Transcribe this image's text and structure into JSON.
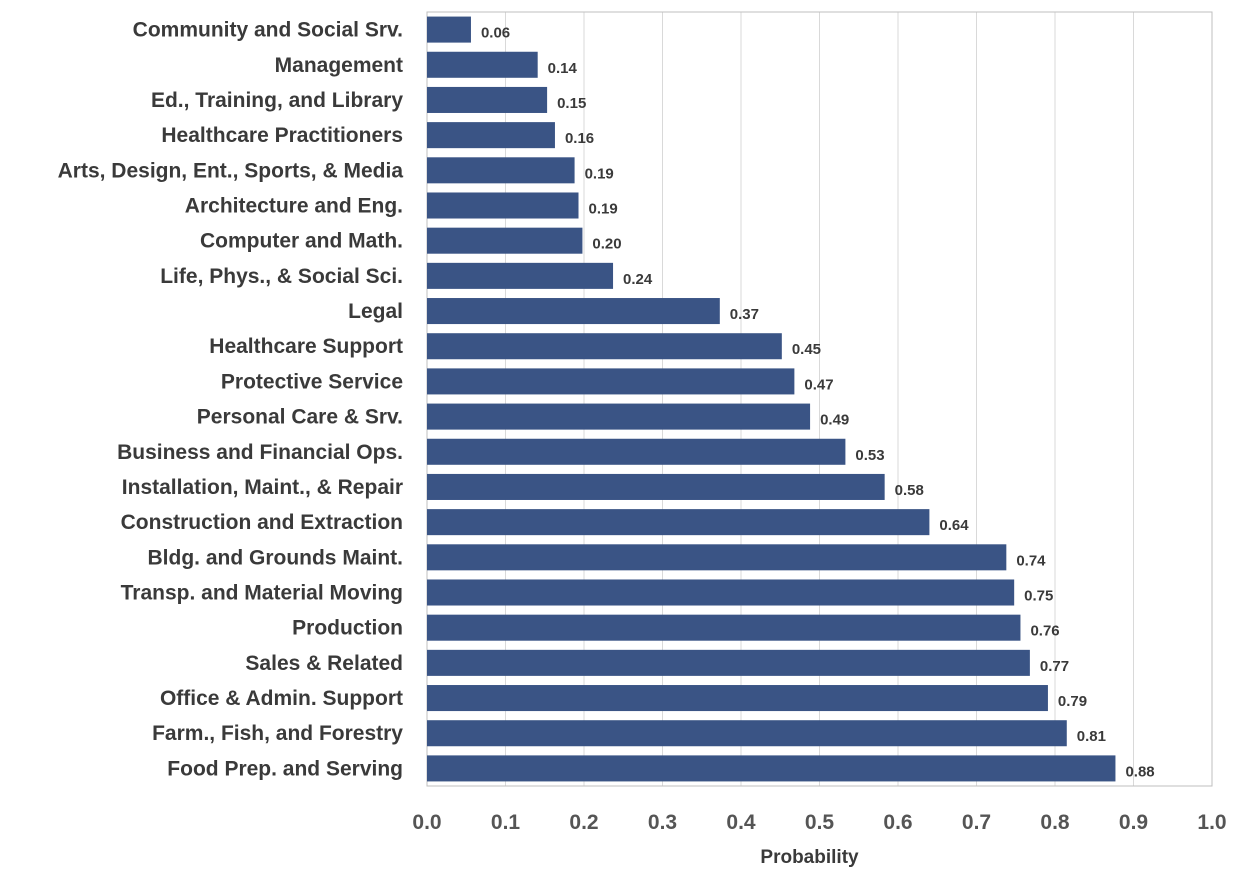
{
  "chart_data": {
    "type": "bar",
    "orientation": "horizontal",
    "title": "",
    "xlabel": "Probability",
    "ylabel": "",
    "xlim": [
      0.0,
      1.0
    ],
    "x_ticks": [
      "0.0",
      "0.1",
      "0.2",
      "0.3",
      "0.4",
      "0.5",
      "0.6",
      "0.7",
      "0.8",
      "0.9",
      "1.0"
    ],
    "grid": "vertical",
    "legend": "none",
    "bar_color": "#3a5485",
    "categories": [
      "Community and Social Srv.",
      "Management",
      "Ed., Training, and Library",
      "Healthcare Practitioners",
      "Arts, Design, Ent., Sports, & Media",
      "Architecture and Eng.",
      "Computer and Math.",
      "Life, Phys., & Social Sci.",
      "Legal",
      "Healthcare Support",
      "Protective Service",
      "Personal Care & Srv.",
      "Business and Financial Ops.",
      "Installation, Maint., & Repair",
      "Construction and Extraction",
      "Bldg. and Grounds Maint.",
      "Transp. and Material Moving",
      "Production",
      "Sales & Related",
      "Office & Admin. Support",
      "Farm., Fish, and Forestry",
      "Food Prep. and Serving"
    ],
    "values": [
      0.056,
      0.141,
      0.153,
      0.163,
      0.188,
      0.193,
      0.198,
      0.237,
      0.373,
      0.452,
      0.468,
      0.488,
      0.533,
      0.583,
      0.64,
      0.738,
      0.748,
      0.756,
      0.768,
      0.791,
      0.815,
      0.877
    ],
    "data_labels": [
      "0.06",
      "0.14",
      "0.15",
      "0.16",
      "0.19",
      "0.19",
      "0.20",
      "0.24",
      "0.37",
      "0.45",
      "0.47",
      "0.49",
      "0.53",
      "0.58",
      "0.64",
      "0.74",
      "0.75",
      "0.76",
      "0.77",
      "0.79",
      "0.81",
      "0.88"
    ]
  }
}
